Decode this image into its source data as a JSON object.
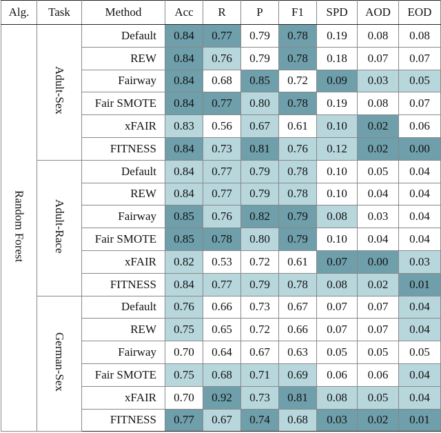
{
  "table": {
    "header": [
      "Alg.",
      "Task",
      "Method",
      "Acc",
      "R",
      "P",
      "F1",
      "SPD",
      "AOD",
      "EOD"
    ],
    "algorithm": "Random Forest",
    "shading_colors": {
      "dark": "#6e9fab",
      "light": "#b8d7dd",
      "none": "#ffffff"
    },
    "groups": [
      {
        "task": "Adult-Sex",
        "rows": [
          {
            "method": "Default",
            "values": [
              "0.84",
              "0.77",
              "0.79",
              "0.78",
              "0.19",
              "0.08",
              "0.08"
            ],
            "shading": [
              "dark",
              "dark",
              "none",
              "dark",
              "none",
              "none",
              "none"
            ]
          },
          {
            "method": "REW",
            "values": [
              "0.84",
              "0.76",
              "0.79",
              "0.78",
              "0.18",
              "0.07",
              "0.07"
            ],
            "shading": [
              "dark",
              "light",
              "none",
              "dark",
              "none",
              "none",
              "none"
            ]
          },
          {
            "method": "Fairway",
            "values": [
              "0.84",
              "0.68",
              "0.85",
              "0.72",
              "0.09",
              "0.03",
              "0.05"
            ],
            "shading": [
              "dark",
              "none",
              "dark",
              "none",
              "dark",
              "light",
              "light"
            ]
          },
          {
            "method": "Fair SMOTE",
            "values": [
              "0.84",
              "0.77",
              "0.80",
              "0.78",
              "0.19",
              "0.08",
              "0.07"
            ],
            "shading": [
              "dark",
              "dark",
              "light",
              "dark",
              "none",
              "none",
              "none"
            ]
          },
          {
            "method": "xFAIR",
            "values": [
              "0.83",
              "0.56",
              "0.67",
              "0.61",
              "0.10",
              "0.02",
              "0.06"
            ],
            "shading": [
              "light",
              "none",
              "light",
              "none",
              "light",
              "dark",
              "none"
            ]
          },
          {
            "method": "FITNESS",
            "values": [
              "0.84",
              "0.73",
              "0.81",
              "0.76",
              "0.12",
              "0.02",
              "0.00"
            ],
            "shading": [
              "dark",
              "light",
              "dark",
              "light",
              "light",
              "dark",
              "dark"
            ]
          }
        ]
      },
      {
        "task": "Adult-Race",
        "rows": [
          {
            "method": "Default",
            "values": [
              "0.84",
              "0.77",
              "0.79",
              "0.78",
              "0.10",
              "0.05",
              "0.04"
            ],
            "shading": [
              "light",
              "light",
              "light",
              "light",
              "none",
              "none",
              "none"
            ]
          },
          {
            "method": "REW",
            "values": [
              "0.84",
              "0.77",
              "0.79",
              "0.78",
              "0.10",
              "0.04",
              "0.04"
            ],
            "shading": [
              "light",
              "light",
              "light",
              "light",
              "none",
              "none",
              "none"
            ]
          },
          {
            "method": "Fairway",
            "values": [
              "0.85",
              "0.76",
              "0.82",
              "0.79",
              "0.08",
              "0.03",
              "0.04"
            ],
            "shading": [
              "dark",
              "light",
              "dark",
              "dark",
              "light",
              "none",
              "none"
            ]
          },
          {
            "method": "Fair SMOTE",
            "values": [
              "0.85",
              "0.78",
              "0.80",
              "0.79",
              "0.10",
              "0.04",
              "0.04"
            ],
            "shading": [
              "dark",
              "dark",
              "light",
              "dark",
              "none",
              "none",
              "none"
            ]
          },
          {
            "method": "xFAIR",
            "values": [
              "0.82",
              "0.53",
              "0.72",
              "0.61",
              "0.07",
              "0.00",
              "0.03"
            ],
            "shading": [
              "light",
              "none",
              "none",
              "none",
              "dark",
              "dark",
              "light"
            ]
          },
          {
            "method": "FITNESS",
            "values": [
              "0.84",
              "0.77",
              "0.79",
              "0.78",
              "0.08",
              "0.02",
              "0.01"
            ],
            "shading": [
              "light",
              "light",
              "light",
              "light",
              "light",
              "light",
              "dark"
            ]
          }
        ]
      },
      {
        "task": "German-Sex",
        "rows": [
          {
            "method": "Default",
            "values": [
              "0.76",
              "0.66",
              "0.73",
              "0.67",
              "0.07",
              "0.07",
              "0.04"
            ],
            "shading": [
              "light",
              "none",
              "none",
              "none",
              "none",
              "none",
              "light"
            ]
          },
          {
            "method": "REW",
            "values": [
              "0.75",
              "0.65",
              "0.72",
              "0.66",
              "0.07",
              "0.07",
              "0.04"
            ],
            "shading": [
              "light",
              "none",
              "none",
              "none",
              "none",
              "none",
              "light"
            ]
          },
          {
            "method": "Fairway",
            "values": [
              "0.70",
              "0.64",
              "0.67",
              "0.63",
              "0.05",
              "0.05",
              "0.05"
            ],
            "shading": [
              "none",
              "none",
              "none",
              "none",
              "none",
              "none",
              "none"
            ]
          },
          {
            "method": "Fair SMOTE",
            "values": [
              "0.75",
              "0.68",
              "0.71",
              "0.69",
              "0.06",
              "0.06",
              "0.04"
            ],
            "shading": [
              "light",
              "light",
              "light",
              "light",
              "none",
              "none",
              "light"
            ]
          },
          {
            "method": "xFAIR",
            "values": [
              "0.70",
              "0.92",
              "0.73",
              "0.81",
              "0.08",
              "0.05",
              "0.04"
            ],
            "shading": [
              "none",
              "dark",
              "light",
              "dark",
              "light",
              "light",
              "light"
            ]
          },
          {
            "method": "FITNESS",
            "values": [
              "0.77",
              "0.67",
              "0.74",
              "0.68",
              "0.03",
              "0.02",
              "0.01"
            ],
            "shading": [
              "dark",
              "light",
              "dark",
              "light",
              "dark",
              "dark",
              "dark"
            ]
          }
        ]
      }
    ]
  }
}
